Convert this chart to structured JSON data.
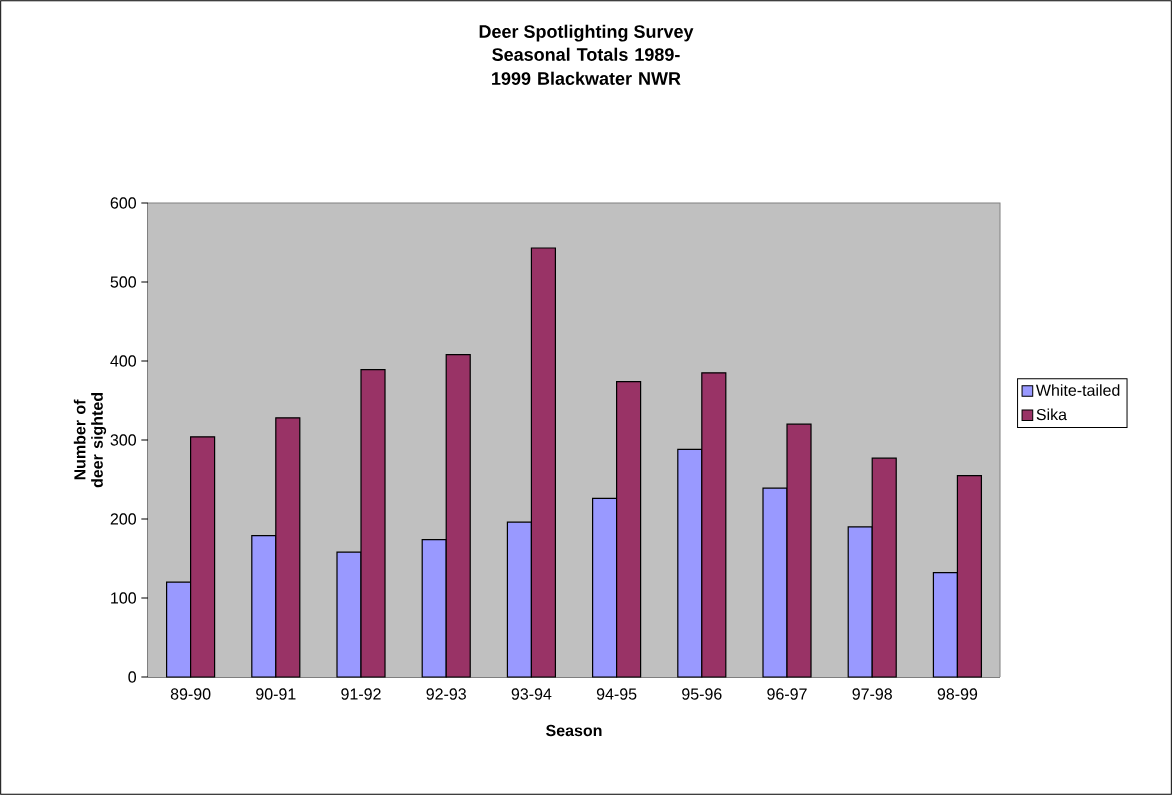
{
  "chart_data": {
    "type": "bar",
    "title": "Deer Spotlighting Survey",
    "subtitle": "Seasonal Totals 1989-1999 Blackwater NWR",
    "xlabel": "Season",
    "ylabel": "Number of deer sighted",
    "categories": [
      "89-90",
      "90-91",
      "91-92",
      "92-93",
      "93-94",
      "94-95",
      "95-96",
      "96-97",
      "97-98",
      "98-99"
    ],
    "series": [
      {
        "name": "White-tailed",
        "color": "#9999ff",
        "values": [
          120,
          179,
          158,
          174,
          196,
          226,
          288,
          239,
          190,
          132
        ]
      },
      {
        "name": "Sika",
        "color": "#993366",
        "values": [
          304,
          328,
          389,
          408,
          543,
          374,
          385,
          320,
          277,
          255
        ]
      }
    ],
    "ylim": [
      0,
      600
    ],
    "yticks": [
      0,
      100,
      200,
      300,
      400,
      500,
      600
    ],
    "grid": false,
    "legend": "right"
  }
}
